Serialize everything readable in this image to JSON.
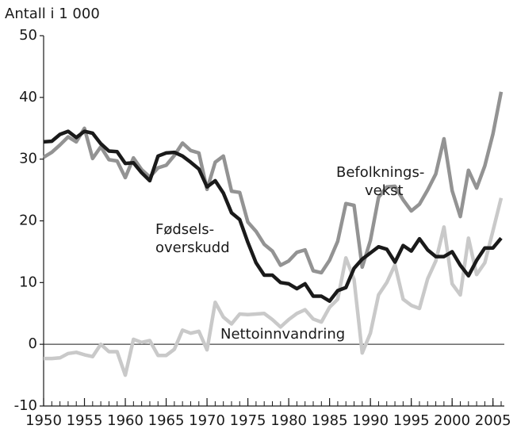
{
  "chart_data": {
    "type": "line",
    "y_axis_label": "Antall i 1 000",
    "x": [
      1950,
      1951,
      1952,
      1953,
      1954,
      1955,
      1956,
      1957,
      1958,
      1959,
      1960,
      1961,
      1962,
      1963,
      1964,
      1965,
      1966,
      1967,
      1968,
      1969,
      1970,
      1971,
      1972,
      1973,
      1974,
      1975,
      1976,
      1977,
      1978,
      1979,
      1980,
      1981,
      1982,
      1983,
      1984,
      1985,
      1986,
      1987,
      1988,
      1989,
      1990,
      1991,
      1992,
      1993,
      1994,
      1995,
      1996,
      1997,
      1998,
      1999,
      2000,
      2001,
      2002,
      2003,
      2004,
      2005,
      2006
    ],
    "series": [
      {
        "name": "Befolknings-\nvekst",
        "color": "#939393",
        "values": [
          30.3,
          31.1,
          32.3,
          33.6,
          32.8,
          35.0,
          30.1,
          32.0,
          29.9,
          29.7,
          27.0,
          30.2,
          28.3,
          27.1,
          28.6,
          29.0,
          30.6,
          32.6,
          31.4,
          31.0,
          25.1,
          29.5,
          30.5,
          24.8,
          24.6,
          19.8,
          18.3,
          16.2,
          15.1,
          12.8,
          13.5,
          14.9,
          15.3,
          11.9,
          11.6,
          13.6,
          16.7,
          22.8,
          22.5,
          12.5,
          16.8,
          23.8,
          25.5,
          25.6,
          23.4,
          21.6,
          22.7,
          25.0,
          27.6,
          33.3,
          24.9,
          20.7,
          28.2,
          25.3,
          28.9,
          34.1,
          40.9
        ]
      },
      {
        "name": "Nettoinnvandring",
        "color": "#c9c9c9",
        "values": [
          -2.3,
          -2.3,
          -2.2,
          -1.5,
          -1.3,
          -1.7,
          -2.0,
          0.0,
          -1.2,
          -1.2,
          -5.0,
          0.8,
          0.3,
          0.6,
          -1.8,
          -1.8,
          -0.8,
          2.3,
          1.8,
          2.1,
          -0.9,
          6.8,
          4.4,
          3.3,
          4.9,
          4.8,
          4.9,
          5.0,
          4.0,
          2.8,
          4.0,
          5.0,
          5.6,
          4.1,
          3.6,
          6.0,
          7.3,
          14.0,
          10.5,
          -1.4,
          1.8,
          8.0,
          10.0,
          12.9,
          7.3,
          6.3,
          5.8,
          10.6,
          13.5,
          19.0,
          9.8,
          8.0,
          17.2,
          11.3,
          13.2,
          18.4,
          23.7
        ]
      },
      {
        "name": "Fødsels-\noverskudd",
        "color": "#1a1a1a",
        "values": [
          32.8,
          32.9,
          34.0,
          34.5,
          33.5,
          34.5,
          34.2,
          32.5,
          31.3,
          31.2,
          29.3,
          29.4,
          27.8,
          26.5,
          30.5,
          31.0,
          31.1,
          30.5,
          29.5,
          28.4,
          25.5,
          26.5,
          24.5,
          21.3,
          20.2,
          16.5,
          13.2,
          11.2,
          11.2,
          10.0,
          9.8,
          9.0,
          9.8,
          7.8,
          7.8,
          7.0,
          8.7,
          9.2,
          12.3,
          13.8,
          14.8,
          15.8,
          15.4,
          13.3,
          16.0,
          15.1,
          17.1,
          15.3,
          14.2,
          14.2,
          15.0,
          12.8,
          11.1,
          13.6,
          15.6,
          15.6,
          17.2
        ]
      }
    ],
    "xlim": [
      1950,
      2006
    ],
    "xticks": [
      1950,
      1955,
      1960,
      1965,
      1970,
      1975,
      1980,
      1985,
      1990,
      1995,
      2000,
      2005
    ],
    "ylim": [
      -10,
      50
    ],
    "yticks": [
      -10,
      0,
      10,
      20,
      30,
      40,
      50
    ]
  }
}
